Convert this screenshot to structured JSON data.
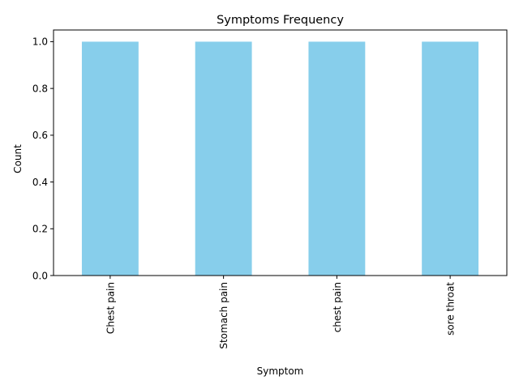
{
  "chart_data": {
    "type": "bar",
    "title": "Symptoms Frequency",
    "xlabel": "Symptom",
    "ylabel": "Count",
    "categories": [
      "Chest pain",
      "Stomach pain",
      "chest pain",
      "sore throat"
    ],
    "values": [
      1,
      1,
      1,
      1
    ],
    "ylim": [
      0,
      1.05
    ],
    "yticks": [
      "0.0",
      "0.2",
      "0.4",
      "0.6",
      "0.8",
      "1.0"
    ],
    "x_tick_rotation": "vertical",
    "grid": false,
    "legend": "none",
    "bar_color": "#87ceeb"
  }
}
